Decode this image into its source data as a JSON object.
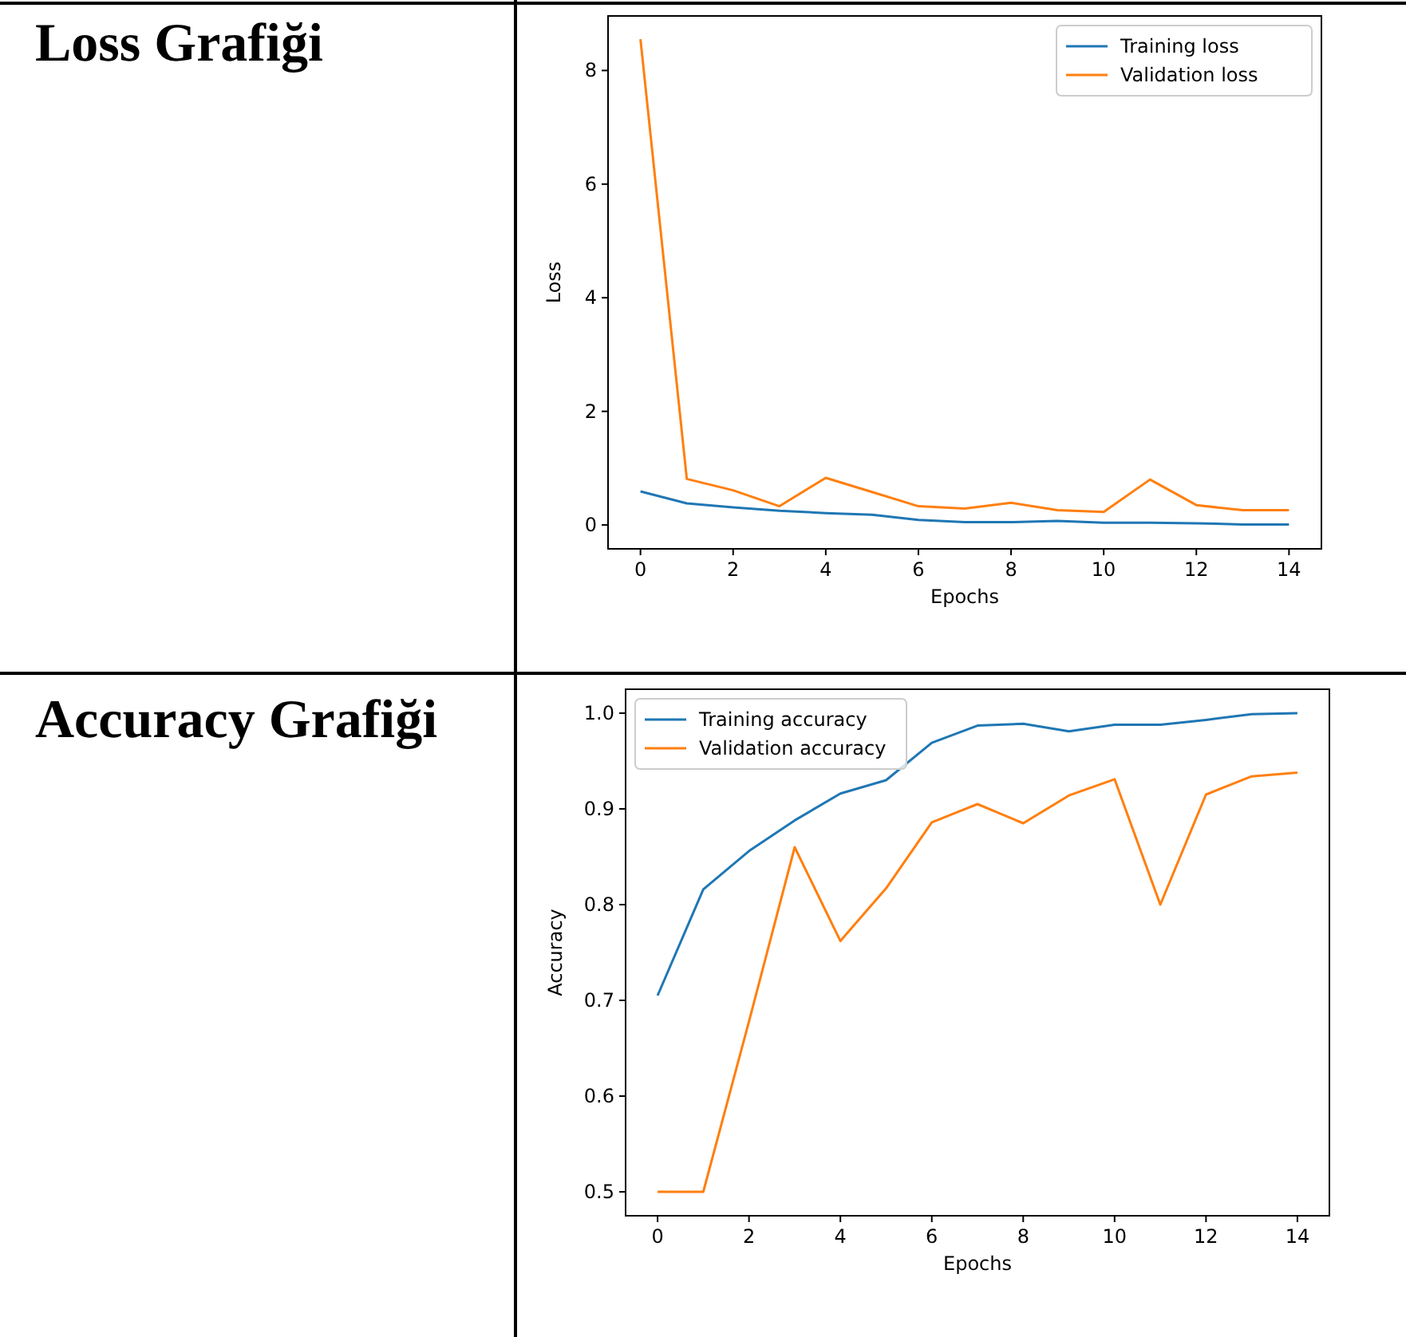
{
  "chart_data": [
    {
      "type": "line",
      "title": "Loss Grafiği",
      "xlabel": "Epochs",
      "ylabel": "Loss",
      "x": [
        0,
        1,
        2,
        3,
        4,
        5,
        6,
        7,
        8,
        9,
        10,
        11,
        12,
        13,
        14
      ],
      "xlim": [
        -0.7,
        14.7
      ],
      "xticks": [
        0,
        2,
        4,
        6,
        8,
        10,
        12,
        14
      ],
      "ylim": [
        -0.42,
        8.96
      ],
      "yticks": [
        0,
        2,
        4,
        6,
        8
      ],
      "legend": "top right",
      "series": [
        {
          "name": "Training loss",
          "color": "#1f77b4",
          "values": [
            0.59,
            0.38,
            0.31,
            0.25,
            0.21,
            0.18,
            0.09,
            0.05,
            0.05,
            0.07,
            0.04,
            0.04,
            0.03,
            0.01,
            0.01
          ]
        },
        {
          "name": "Validation loss",
          "color": "#ff7f0e",
          "values": [
            8.55,
            0.81,
            0.61,
            0.33,
            0.83,
            0.58,
            0.33,
            0.29,
            0.39,
            0.26,
            0.23,
            0.8,
            0.35,
            0.26,
            0.26
          ]
        }
      ]
    },
    {
      "type": "line",
      "title": "Accuracy Grafiği",
      "xlabel": "Epochs",
      "ylabel": "Accuracy",
      "x": [
        0,
        1,
        2,
        3,
        4,
        5,
        6,
        7,
        8,
        9,
        10,
        11,
        12,
        13,
        14
      ],
      "xlim": [
        -0.7,
        14.7
      ],
      "xticks": [
        0,
        2,
        4,
        6,
        8,
        10,
        12,
        14
      ],
      "ylim": [
        0.475,
        1.025
      ],
      "yticks": [
        {
          "value": 0.5,
          "label": "0.5"
        },
        {
          "value": 0.6,
          "label": "0.6"
        },
        {
          "value": 0.7,
          "label": "0.7"
        },
        {
          "value": 0.8,
          "label": "0.8"
        },
        {
          "value": 0.9,
          "label": "0.9"
        },
        {
          "value": 1,
          "label": "1.0"
        }
      ],
      "legend": "top left",
      "series": [
        {
          "name": "Training accuracy",
          "color": "#1f77b4",
          "values": [
            0.705,
            0.816,
            0.856,
            0.888,
            0.916,
            0.93,
            0.969,
            0.987,
            0.989,
            0.981,
            0.988,
            0.988,
            0.993,
            0.999,
            1.0
          ]
        },
        {
          "name": "Validation accuracy",
          "color": "#ff7f0e",
          "values": [
            0.5,
            0.5,
            0.678,
            0.86,
            0.762,
            0.817,
            0.886,
            0.905,
            0.885,
            0.914,
            0.931,
            0.8,
            0.915,
            0.934,
            0.938
          ]
        }
      ]
    }
  ]
}
